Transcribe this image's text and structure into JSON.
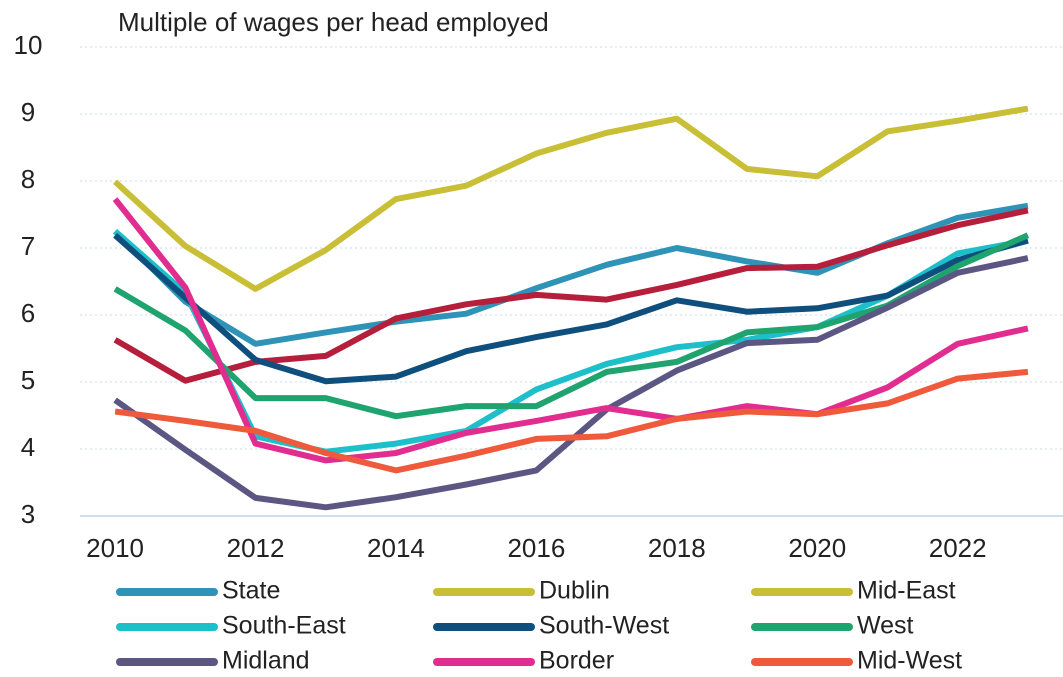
{
  "chart_data": {
    "type": "line",
    "title": "Multiple of wages per head employed",
    "x": [
      2010,
      2011,
      2012,
      2013,
      2014,
      2015,
      2016,
      2017,
      2018,
      2019,
      2020,
      2021,
      2022,
      2023
    ],
    "xlim": [
      2009.5,
      2023.5
    ],
    "xticks": [
      2010,
      2012,
      2014,
      2016,
      2018,
      2020,
      2022
    ],
    "ylim": [
      3,
      10
    ],
    "yticks": [
      3,
      4,
      5,
      6,
      7,
      8,
      9,
      10
    ],
    "grid": true,
    "legend": "bottom",
    "series": [
      {
        "name": "State",
        "color": "#2f93b8",
        "values": [
          7.25,
          6.2,
          5.57,
          5.74,
          5.9,
          6.02,
          6.4,
          6.75,
          7.0,
          6.8,
          6.63,
          7.07,
          7.45,
          7.63
        ]
      },
      {
        "name": "Dublin",
        "color": "#c8bf36",
        "values": [
          7.99,
          7.03,
          6.39,
          6.97,
          7.73,
          7.93,
          8.41,
          8.72,
          8.93,
          8.18,
          8.07,
          8.74,
          8.9,
          9.08
        ]
      },
      {
        "name": "Mid-East",
        "color": "#b51f3b",
        "legend_color": "#c8bf36",
        "values": [
          5.63,
          5.02,
          5.3,
          5.39,
          5.95,
          6.16,
          6.3,
          6.23,
          6.45,
          6.7,
          6.72,
          7.04,
          7.34,
          7.56
        ]
      },
      {
        "name": "South-East",
        "color": "#1dbfca",
        "values": [
          7.25,
          6.33,
          4.19,
          3.96,
          4.08,
          4.27,
          4.89,
          5.27,
          5.52,
          5.63,
          5.82,
          6.29,
          6.92,
          7.11
        ]
      },
      {
        "name": "South-West",
        "color": "#0f4f7e",
        "values": [
          7.19,
          6.26,
          5.33,
          5.01,
          5.08,
          5.46,
          5.67,
          5.86,
          6.22,
          6.05,
          6.1,
          6.29,
          6.82,
          7.11
        ]
      },
      {
        "name": "West",
        "color": "#1fa36f",
        "values": [
          6.39,
          5.77,
          4.76,
          4.76,
          4.49,
          4.64,
          4.64,
          5.15,
          5.3,
          5.74,
          5.82,
          6.14,
          6.73,
          7.19
        ]
      },
      {
        "name": "Midland",
        "color": "#5c5683",
        "values": [
          4.73,
          3.99,
          3.27,
          3.13,
          3.28,
          3.47,
          3.68,
          4.59,
          5.17,
          5.58,
          5.63,
          6.11,
          6.63,
          6.85
        ]
      },
      {
        "name": "Border",
        "color": "#e02d8f",
        "values": [
          7.73,
          6.41,
          4.08,
          3.83,
          3.94,
          4.24,
          4.42,
          4.61,
          4.45,
          4.64,
          4.52,
          4.92,
          5.57,
          5.8
        ]
      },
      {
        "name": "Mid-West",
        "color": "#ef5a3c",
        "values": [
          4.56,
          4.42,
          4.27,
          3.94,
          3.68,
          3.9,
          4.15,
          4.19,
          4.45,
          4.56,
          4.52,
          4.68,
          5.05,
          5.15
        ]
      }
    ]
  }
}
